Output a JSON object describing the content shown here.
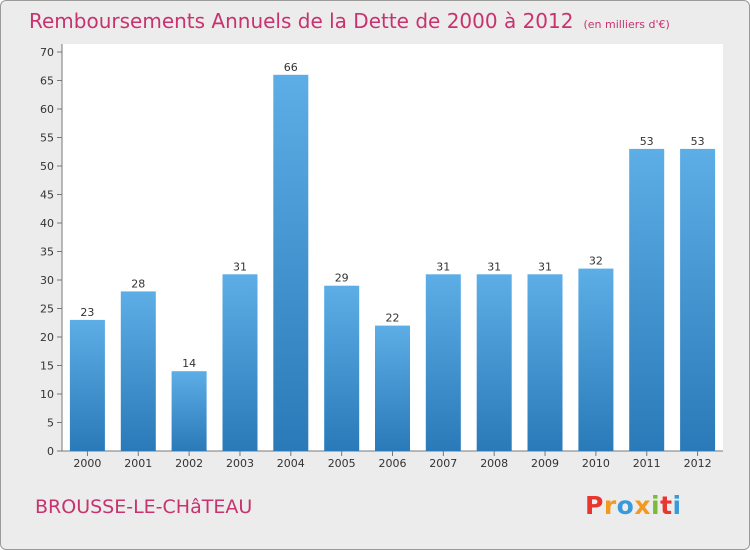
{
  "header": {
    "title": "Remboursements Annuels de la Dette de 2000 à 2012",
    "subtitle": "(en milliers d'€)"
  },
  "footer": {
    "commune": "BROUSSE-LE-CHâTEAU",
    "logo": "Proxiti"
  },
  "colors": {
    "bar_top": "#5dade6",
    "bar_bottom": "#2a7ab9",
    "title": "#c8326e",
    "background": "#ececec",
    "logo": [
      "#e8352e",
      "#f29a1f",
      "#3a9ad9",
      "#f29a1f",
      "#7cba3a",
      "#e8352e",
      "#3a9ad9"
    ]
  },
  "chart_data": {
    "type": "bar",
    "title": "Remboursements Annuels de la Dette de 2000 à 2012",
    "subtitle": "(en milliers d'€)",
    "xlabel": "",
    "ylabel": "",
    "categories": [
      "2000",
      "2001",
      "2002",
      "2003",
      "2004",
      "2005",
      "2006",
      "2007",
      "2008",
      "2009",
      "2010",
      "2011",
      "2012"
    ],
    "values": [
      23,
      28,
      14,
      31,
      66,
      29,
      22,
      31,
      31,
      31,
      32,
      53,
      53
    ],
    "ylim": [
      0,
      70
    ],
    "yticks": [
      0,
      5,
      10,
      15,
      20,
      25,
      30,
      35,
      40,
      45,
      50,
      55,
      60,
      65,
      70
    ],
    "grid": false,
    "data_labels": true
  }
}
